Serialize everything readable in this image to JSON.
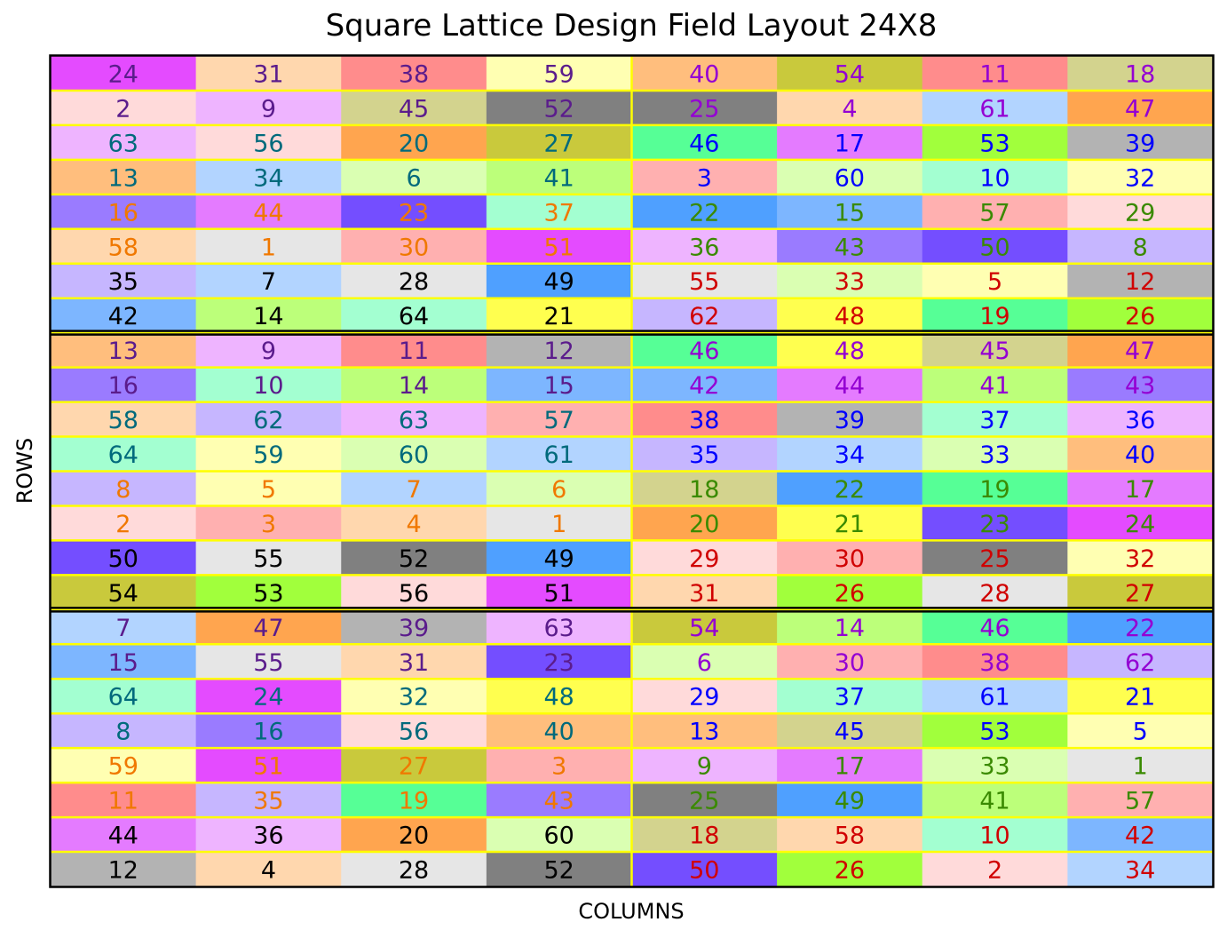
{
  "chart_data": {
    "type": "heatmap",
    "title": "Square Lattice Design Field Layout 24X8",
    "xlabel": "COLUMNS",
    "ylabel": "ROWS",
    "n_rows": 24,
    "n_cols": 8,
    "replicate_rows": 8,
    "block_cols": 4,
    "grid_line_color": "#FFFF00",
    "replicate_border_color": "#000000",
    "row_text_colors": [
      "#5B1C8C",
      "#5B1C8C",
      "#006A7C",
      "#006A7C",
      "#F07800",
      "#F07800",
      "#000000",
      "#000000"
    ],
    "right_row_text_colors": [
      "#9400D3",
      "#9400D3",
      "#0000FF",
      "#0000FF",
      "#3A8A00",
      "#3A8A00",
      "#D00000",
      "#D00000"
    ],
    "values": [
      [
        24,
        31,
        38,
        59,
        40,
        54,
        11,
        18
      ],
      [
        2,
        9,
        45,
        52,
        25,
        4,
        61,
        47
      ],
      [
        63,
        56,
        20,
        27,
        46,
        17,
        53,
        39
      ],
      [
        13,
        34,
        6,
        41,
        3,
        60,
        10,
        32
      ],
      [
        16,
        44,
        23,
        37,
        22,
        15,
        57,
        29
      ],
      [
        58,
        1,
        30,
        51,
        36,
        43,
        50,
        8
      ],
      [
        35,
        7,
        28,
        49,
        55,
        33,
        5,
        12
      ],
      [
        42,
        14,
        64,
        21,
        62,
        48,
        19,
        26
      ],
      [
        13,
        9,
        11,
        12,
        46,
        48,
        45,
        47
      ],
      [
        16,
        10,
        14,
        15,
        42,
        44,
        41,
        43
      ],
      [
        58,
        62,
        63,
        57,
        38,
        39,
        37,
        36
      ],
      [
        64,
        59,
        60,
        61,
        35,
        34,
        33,
        40
      ],
      [
        8,
        5,
        7,
        6,
        18,
        22,
        19,
        17
      ],
      [
        2,
        3,
        4,
        1,
        20,
        21,
        23,
        24
      ],
      [
        50,
        55,
        52,
        49,
        29,
        30,
        25,
        32
      ],
      [
        54,
        53,
        56,
        51,
        31,
        26,
        28,
        27
      ],
      [
        7,
        47,
        39,
        63,
        54,
        14,
        46,
        22
      ],
      [
        15,
        55,
        31,
        23,
        6,
        30,
        38,
        62
      ],
      [
        64,
        24,
        32,
        48,
        29,
        37,
        61,
        21
      ],
      [
        8,
        16,
        56,
        40,
        13,
        45,
        53,
        5
      ],
      [
        59,
        51,
        27,
        3,
        9,
        17,
        33,
        1
      ],
      [
        11,
        35,
        19,
        43,
        25,
        49,
        41,
        57
      ],
      [
        44,
        36,
        20,
        60,
        18,
        58,
        10,
        42
      ],
      [
        12,
        4,
        28,
        52,
        50,
        26,
        2,
        34
      ]
    ],
    "colors": [
      [
        "#E44BFF",
        "#FFD7AE",
        "#FF8C8C",
        "#FFFFB2",
        "#FFBE7D",
        "#C9C93C",
        "#FF8C8C",
        "#D3D38E"
      ],
      [
        "#FFDADA",
        "#EEB4FF",
        "#D3D38E",
        "#808080",
        "#808080",
        "#FFD7AE",
        "#B2D4FF",
        "#FFA54F"
      ],
      [
        "#EEB4FF",
        "#FFDADA",
        "#FFA54F",
        "#C9C93C",
        "#56FF96",
        "#E47BFF",
        "#A1FF3C",
        "#B3B3B3"
      ],
      [
        "#FFBE7D",
        "#B2D4FF",
        "#DAFFB2",
        "#BCFF7A",
        "#FFB0B0",
        "#DAFFB2",
        "#A3FFD1",
        "#FFFFB2"
      ],
      [
        "#9A7BFF",
        "#E47BFF",
        "#744EFF",
        "#A3FFD1",
        "#4FA0FF",
        "#7DB6FF",
        "#FFB0B0",
        "#FFDADA"
      ],
      [
        "#FFD7AE",
        "#E6E6E6",
        "#FFB0B0",
        "#E44BFF",
        "#EEB4FF",
        "#9A7BFF",
        "#744EFF",
        "#C6B6FF"
      ],
      [
        "#C6B6FF",
        "#B2D4FF",
        "#E6E6E6",
        "#4FA0FF",
        "#E6E6E6",
        "#DAFFB2",
        "#FFFFB2",
        "#B3B3B3"
      ],
      [
        "#7DB6FF",
        "#BCFF7A",
        "#A3FFD1",
        "#FFFF4F",
        "#C6B6FF",
        "#FFFF4F",
        "#56FF96",
        "#A1FF3C"
      ],
      [
        "#FFBE7D",
        "#EEB4FF",
        "#FF8C8C",
        "#B3B3B3",
        "#56FF96",
        "#FFFF4F",
        "#D3D38E",
        "#FFA54F"
      ],
      [
        "#9A7BFF",
        "#A3FFD1",
        "#BCFF7A",
        "#7DB6FF",
        "#7DB6FF",
        "#E47BFF",
        "#BCFF7A",
        "#9A7BFF"
      ],
      [
        "#FFD7AE",
        "#C6B6FF",
        "#EEB4FF",
        "#FFB0B0",
        "#FF8C8C",
        "#B3B3B3",
        "#A3FFD1",
        "#EEB4FF"
      ],
      [
        "#A3FFD1",
        "#FFFFB2",
        "#DAFFB2",
        "#B2D4FF",
        "#C6B6FF",
        "#B2D4FF",
        "#DAFFB2",
        "#FFBE7D"
      ],
      [
        "#C6B6FF",
        "#FFFFB2",
        "#B2D4FF",
        "#DAFFB2",
        "#D3D38E",
        "#4FA0FF",
        "#56FF96",
        "#E47BFF"
      ],
      [
        "#FFDADA",
        "#FFB0B0",
        "#FFD7AE",
        "#E6E6E6",
        "#FFA54F",
        "#FFFF4F",
        "#744EFF",
        "#E44BFF"
      ],
      [
        "#744EFF",
        "#E6E6E6",
        "#808080",
        "#4FA0FF",
        "#FFDADA",
        "#FFB0B0",
        "#808080",
        "#FFFFB2"
      ],
      [
        "#C9C93C",
        "#A1FF3C",
        "#FFDADA",
        "#E44BFF",
        "#FFD7AE",
        "#A1FF3C",
        "#E6E6E6",
        "#C9C93C"
      ],
      [
        "#B2D4FF",
        "#FFA54F",
        "#B3B3B3",
        "#EEB4FF",
        "#C9C93C",
        "#BCFF7A",
        "#56FF96",
        "#4FA0FF"
      ],
      [
        "#7DB6FF",
        "#E6E6E6",
        "#FFD7AE",
        "#744EFF",
        "#DAFFB2",
        "#FFB0B0",
        "#FF8C8C",
        "#C6B6FF"
      ],
      [
        "#A3FFD1",
        "#E44BFF",
        "#FFFFB2",
        "#FFFF4F",
        "#FFDADA",
        "#A3FFD1",
        "#B2D4FF",
        "#FFFF4F"
      ],
      [
        "#C6B6FF",
        "#9A7BFF",
        "#FFDADA",
        "#FFBE7D",
        "#FFBE7D",
        "#D3D38E",
        "#A1FF3C",
        "#FFFFB2"
      ],
      [
        "#FFFFB2",
        "#E44BFF",
        "#C9C93C",
        "#FFB0B0",
        "#EEB4FF",
        "#E47BFF",
        "#DAFFB2",
        "#E6E6E6"
      ],
      [
        "#FF8C8C",
        "#C6B6FF",
        "#56FF96",
        "#9A7BFF",
        "#808080",
        "#4FA0FF",
        "#BCFF7A",
        "#FFB0B0"
      ],
      [
        "#E47BFF",
        "#EEB4FF",
        "#FFA54F",
        "#DAFFB2",
        "#D3D38E",
        "#FFD7AE",
        "#A3FFD1",
        "#7DB6FF"
      ],
      [
        "#B3B3B3",
        "#FFD7AE",
        "#E6E6E6",
        "#808080",
        "#744EFF",
        "#A1FF3C",
        "#FFDADA",
        "#B2D4FF"
      ]
    ]
  }
}
